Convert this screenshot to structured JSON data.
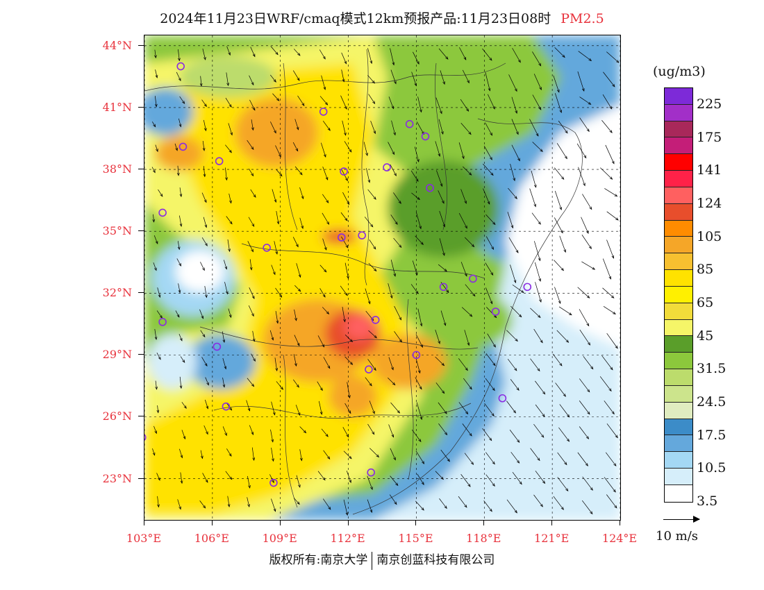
{
  "title": "2024年11月23日WRF/cmaq模式12km预报产品:11月23日08时",
  "pollutant": "PM2.5",
  "colorbar": {
    "unit": "(ug/m3)",
    "labels": [
      "225",
      "175",
      "141",
      "124",
      "105",
      "85",
      "65",
      "45",
      "31.5",
      "24.5",
      "17.5",
      "10.5",
      "3.5"
    ],
    "colors": [
      "#7d2ad8",
      "#a22fc8",
      "#a8285a",
      "#c41e78",
      "#ff0000",
      "#ff2248",
      "#ff6060",
      "#e84e2c",
      "#ff8c00",
      "#f5a628",
      "#f7c030",
      "#ffe200",
      "#fff000",
      "#f2dc3a",
      "#f5f568",
      "#5a9e2a",
      "#8cc83c",
      "#bcdc6c",
      "#cce48c",
      "#e0ecc0",
      "#3c8cc8",
      "#64a8dc",
      "#a4d8f4",
      "#d6eefa",
      "#ffffff"
    ]
  },
  "axes": {
    "lat_labels": [
      "44°N",
      "41°N",
      "38°N",
      "35°N",
      "32°N",
      "29°N",
      "26°N",
      "23°N"
    ],
    "lon_labels": [
      "103°E",
      "106°E",
      "109°E",
      "112°E",
      "115°E",
      "118°E",
      "121°E",
      "124°E"
    ]
  },
  "wind_reference": "10 m/s",
  "footer": {
    "left": "版权所有:南京大学",
    "right": "南京创蓝科技有限公司"
  },
  "cities": [
    {
      "lon": 104.6,
      "lat": 43.0
    },
    {
      "lon": 110.9,
      "lat": 40.8
    },
    {
      "lon": 114.7,
      "lat": 40.2
    },
    {
      "lon": 115.4,
      "lat": 39.6
    },
    {
      "lon": 104.7,
      "lat": 39.1
    },
    {
      "lon": 106.3,
      "lat": 38.4
    },
    {
      "lon": 111.8,
      "lat": 37.9
    },
    {
      "lon": 113.7,
      "lat": 38.1
    },
    {
      "lon": 115.6,
      "lat": 37.1
    },
    {
      "lon": 103.8,
      "lat": 35.9
    },
    {
      "lon": 112.6,
      "lat": 34.8
    },
    {
      "lon": 108.4,
      "lat": 34.2
    },
    {
      "lon": 111.7,
      "lat": 34.7
    },
    {
      "lon": 116.2,
      "lat": 32.3
    },
    {
      "lon": 117.5,
      "lat": 32.7
    },
    {
      "lon": 119.9,
      "lat": 32.3
    },
    {
      "lon": 103.8,
      "lat": 30.6
    },
    {
      "lon": 113.2,
      "lat": 30.7
    },
    {
      "lon": 118.5,
      "lat": 31.1
    },
    {
      "lon": 106.2,
      "lat": 29.4
    },
    {
      "lon": 115.0,
      "lat": 29.0
    },
    {
      "lon": 112.9,
      "lat": 28.3
    },
    {
      "lon": 106.6,
      "lat": 26.5
    },
    {
      "lon": 118.8,
      "lat": 26.9
    },
    {
      "lon": 102.9,
      "lat": 25.0
    },
    {
      "lon": 113.0,
      "lat": 23.3
    },
    {
      "lon": 108.7,
      "lat": 22.8
    }
  ],
  "map_extent": {
    "lon_min": 103.0,
    "lon_max": 124.0,
    "lat_min": 21.0,
    "lat_max": 44.5
  }
}
